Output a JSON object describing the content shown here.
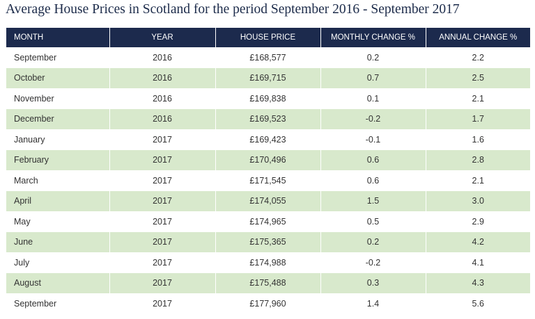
{
  "title": "Average House Prices in Scotland for the period September 2016 - September 2017",
  "table": {
    "headers": [
      "MONTH",
      "YEAR",
      "HOUSE PRICE",
      "MONTHLY CHANGE %",
      "ANNUAL CHANGE %"
    ],
    "rows": [
      [
        "September",
        "2016",
        "£168,577",
        "0.2",
        "2.2"
      ],
      [
        "October",
        "2016",
        "£169,715",
        "0.7",
        "2.5"
      ],
      [
        "November",
        "2016",
        "£169,838",
        "0.1",
        "2.1"
      ],
      [
        "December",
        "2016",
        "£169,523",
        "-0.2",
        "1.7"
      ],
      [
        "January",
        "2017",
        "£169,423",
        "-0.1",
        "1.6"
      ],
      [
        "February",
        "2017",
        "£170,496",
        "0.6",
        "2.8"
      ],
      [
        "March",
        "2017",
        "£171,545",
        "0.6",
        "2.1"
      ],
      [
        "April",
        "2017",
        "£174,055",
        "1.5",
        "3.0"
      ],
      [
        "May",
        "2017",
        "£174,965",
        "0.5",
        "2.9"
      ],
      [
        "June",
        "2017",
        "£175,365",
        "0.2",
        "4.2"
      ],
      [
        "July",
        "2017",
        "£174,988",
        "-0.2",
        "4.1"
      ],
      [
        "August",
        "2017",
        "£175,488",
        "0.3",
        "4.3"
      ],
      [
        "September",
        "2017",
        "£177,960",
        "1.4",
        "5.6"
      ]
    ]
  }
}
